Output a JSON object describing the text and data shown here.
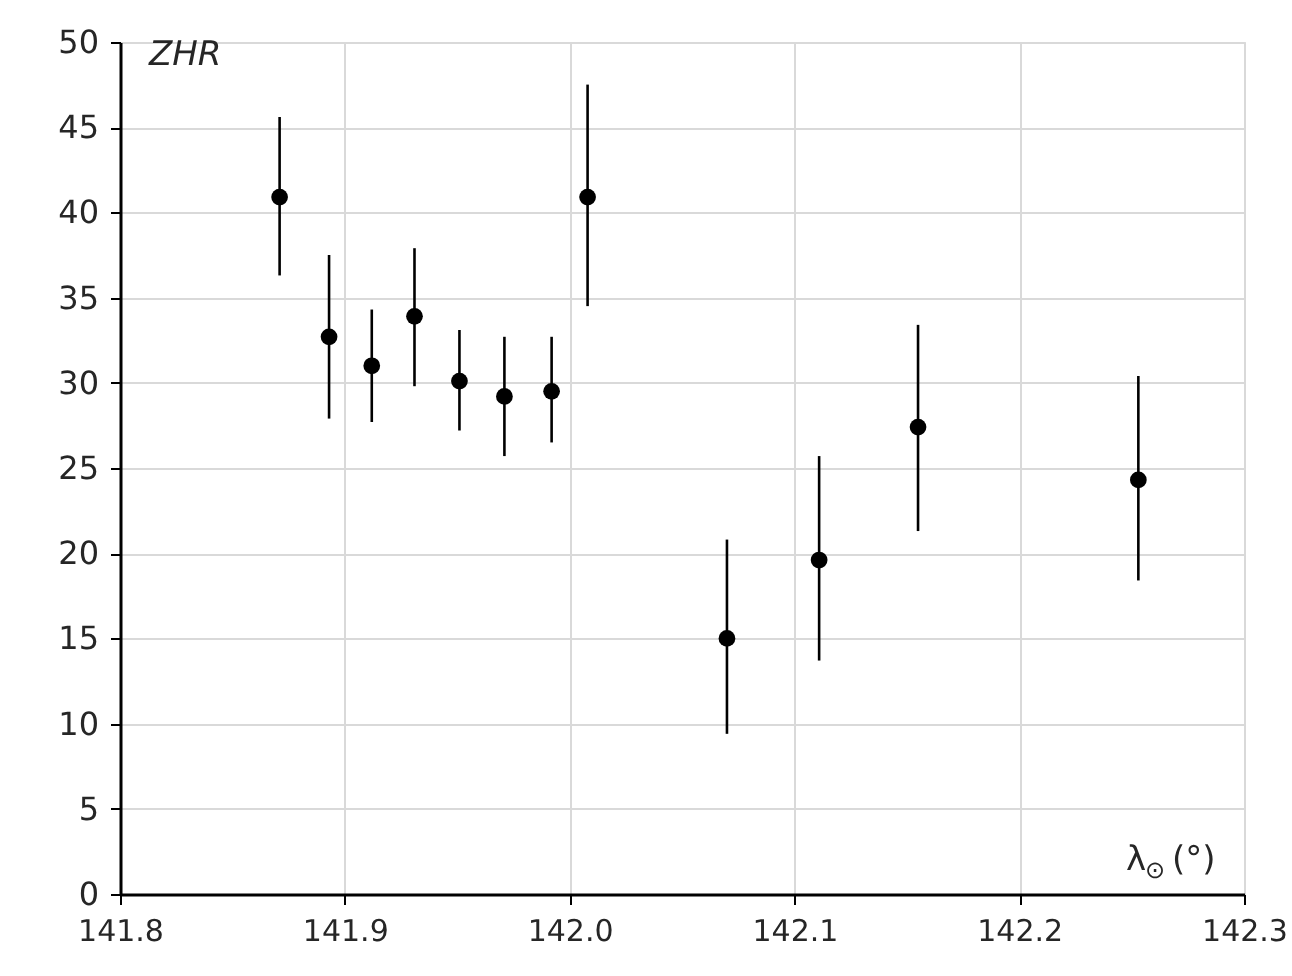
{
  "chart_data": {
    "type": "scatter",
    "ylabel": "ZHR",
    "xlabel": "λ$_{⊙}$ (°)",
    "x": [
      141.871,
      141.893,
      141.912,
      141.931,
      141.951,
      141.971,
      141.992,
      142.008,
      142.07,
      142.111,
      142.155,
      142.253
    ],
    "series": [
      {
        "color": "#000000",
        "values": [
          40.9,
          32.7,
          31.0,
          33.9,
          30.1,
          29.2,
          29.5,
          40.9,
          15.0,
          19.6,
          27.4,
          24.3
        ],
        "errors": [
          [
            36.3,
            45.6
          ],
          [
            27.9,
            37.5
          ],
          [
            27.7,
            34.3
          ],
          [
            29.8,
            37.9
          ],
          [
            27.2,
            33.1
          ],
          [
            25.7,
            32.7
          ],
          [
            26.5,
            32.7
          ],
          [
            34.5,
            47.5
          ],
          [
            9.4,
            20.8
          ],
          [
            13.7,
            25.7
          ],
          [
            21.3,
            33.4
          ],
          [
            18.4,
            30.4
          ]
        ]
      }
    ],
    "xlim": [
      141.8,
      142.3
    ],
    "xticks": [
      {
        "value": 141.8,
        "label": "141.8"
      },
      141.9,
      {
        "value": 142.0,
        "label": "142.0"
      },
      142.1,
      142.2,
      142.3
    ],
    "ylim": [
      0,
      50
    ],
    "yticks": [
      0,
      5,
      10,
      15,
      20,
      25,
      30,
      35,
      40,
      45,
      50
    ],
    "grid": true,
    "marker": "circle"
  }
}
